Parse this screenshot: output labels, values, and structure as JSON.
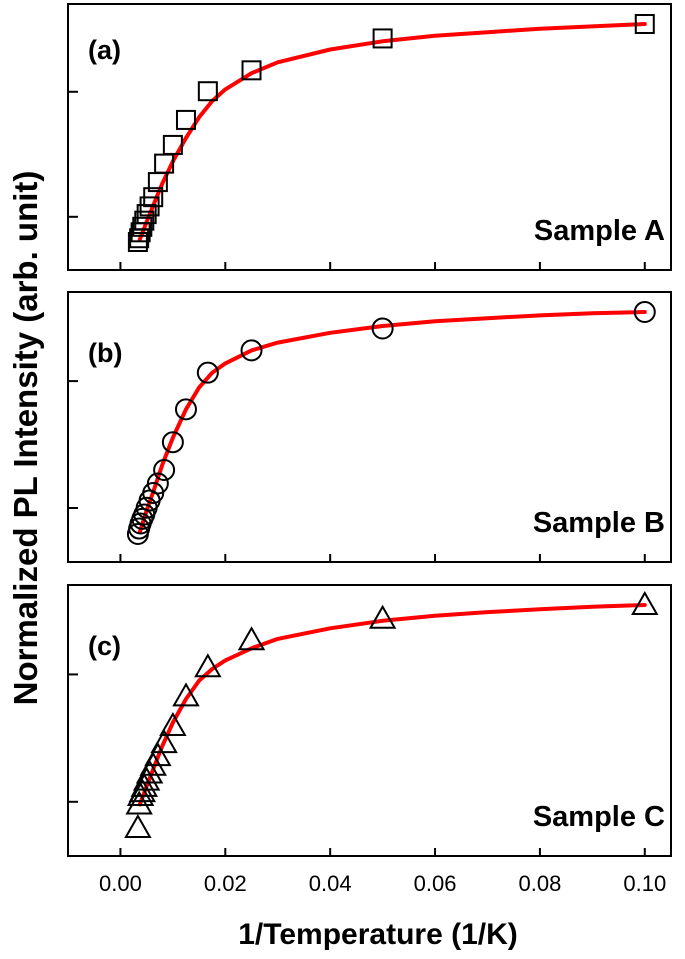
{
  "figure": {
    "ylabel": "Normalized PL Intensity (arb. unit)",
    "xlabel": "1/Temperature (1/K)",
    "x_ticks": [
      "0.00",
      "0.02",
      "0.04",
      "0.06",
      "0.08",
      "0.10"
    ]
  },
  "colors": {
    "fit_line": "#ff0000",
    "marker": "#000000",
    "axes": "#000000"
  },
  "chart_data": [
    {
      "type": "scatter",
      "panel_label": "(a)",
      "sample_label": "Sample A",
      "marker": "square",
      "y_scale": "log",
      "xlim": [
        -0.01,
        0.105
      ],
      "y_ticks_shown": false,
      "series": [
        {
          "kind": "measured",
          "x": [
            0.00333,
            0.00357,
            0.00385,
            0.00417,
            0.00455,
            0.005,
            0.00556,
            0.00625,
            0.00714,
            0.00833,
            0.01,
            0.0125,
            0.01667,
            0.025,
            0.05,
            0.1
          ],
          "y": [
            0.06,
            0.063,
            0.068,
            0.073,
            0.079,
            0.086,
            0.095,
            0.107,
            0.13,
            0.165,
            0.21,
            0.29,
            0.42,
            0.55,
            0.83,
            1.0
          ]
        },
        {
          "kind": "fit",
          "x": [
            0.0037,
            0.005,
            0.0065,
            0.008,
            0.01,
            0.0125,
            0.015,
            0.0175,
            0.02,
            0.025,
            0.03,
            0.04,
            0.05,
            0.06,
            0.07,
            0.08,
            0.09,
            0.1
          ],
          "y": [
            0.062,
            0.078,
            0.1,
            0.128,
            0.17,
            0.23,
            0.3,
            0.37,
            0.43,
            0.53,
            0.61,
            0.72,
            0.8,
            0.86,
            0.9,
            0.94,
            0.97,
            1.0
          ]
        }
      ]
    },
    {
      "type": "scatter",
      "panel_label": "(b)",
      "sample_label": "Sample B",
      "marker": "circle",
      "y_scale": "log",
      "xlim": [
        -0.01,
        0.105
      ],
      "y_ticks_shown": false,
      "series": [
        {
          "kind": "measured",
          "x": [
            0.00333,
            0.00357,
            0.00385,
            0.00417,
            0.00455,
            0.005,
            0.00556,
            0.00625,
            0.00714,
            0.00833,
            0.01,
            0.0125,
            0.01667,
            0.025,
            0.05,
            0.1
          ],
          "y": [
            0.035,
            0.038,
            0.041,
            0.044,
            0.047,
            0.052,
            0.058,
            0.065,
            0.075,
            0.092,
            0.14,
            0.23,
            0.4,
            0.56,
            0.78,
            1.0
          ]
        },
        {
          "kind": "fit",
          "x": [
            0.0037,
            0.005,
            0.0065,
            0.008,
            0.01,
            0.0125,
            0.015,
            0.0175,
            0.02,
            0.025,
            0.03,
            0.04,
            0.05,
            0.06,
            0.07,
            0.08,
            0.09,
            0.1
          ],
          "y": [
            0.036,
            0.05,
            0.07,
            0.1,
            0.15,
            0.23,
            0.32,
            0.4,
            0.46,
            0.56,
            0.63,
            0.73,
            0.81,
            0.87,
            0.91,
            0.95,
            0.98,
            1.0
          ]
        }
      ]
    },
    {
      "type": "scatter",
      "panel_label": "(c)",
      "sample_label": "Sample C",
      "marker": "triangle",
      "y_scale": "log",
      "xlim": [
        -0.01,
        0.105
      ],
      "y_ticks_shown": false,
      "series": [
        {
          "kind": "measured",
          "x": [
            0.00333,
            0.00357,
            0.00385,
            0.00417,
            0.00455,
            0.005,
            0.00556,
            0.00625,
            0.00714,
            0.00833,
            0.01,
            0.0125,
            0.01667,
            0.025,
            0.05,
            0.1
          ],
          "y": [
            0.072,
            0.095,
            0.105,
            0.11,
            0.117,
            0.126,
            0.137,
            0.15,
            0.168,
            0.196,
            0.24,
            0.34,
            0.48,
            0.66,
            0.85,
            1.0
          ]
        },
        {
          "kind": "fit",
          "x": [
            0.0037,
            0.005,
            0.0065,
            0.008,
            0.01,
            0.0125,
            0.015,
            0.0175,
            0.02,
            0.025,
            0.03,
            0.04,
            0.05,
            0.06,
            0.07,
            0.08,
            0.09,
            0.1
          ],
          "y": [
            0.095,
            0.118,
            0.15,
            0.19,
            0.25,
            0.33,
            0.41,
            0.47,
            0.52,
            0.6,
            0.67,
            0.76,
            0.83,
            0.88,
            0.92,
            0.95,
            0.98,
            1.0
          ]
        }
      ]
    }
  ]
}
